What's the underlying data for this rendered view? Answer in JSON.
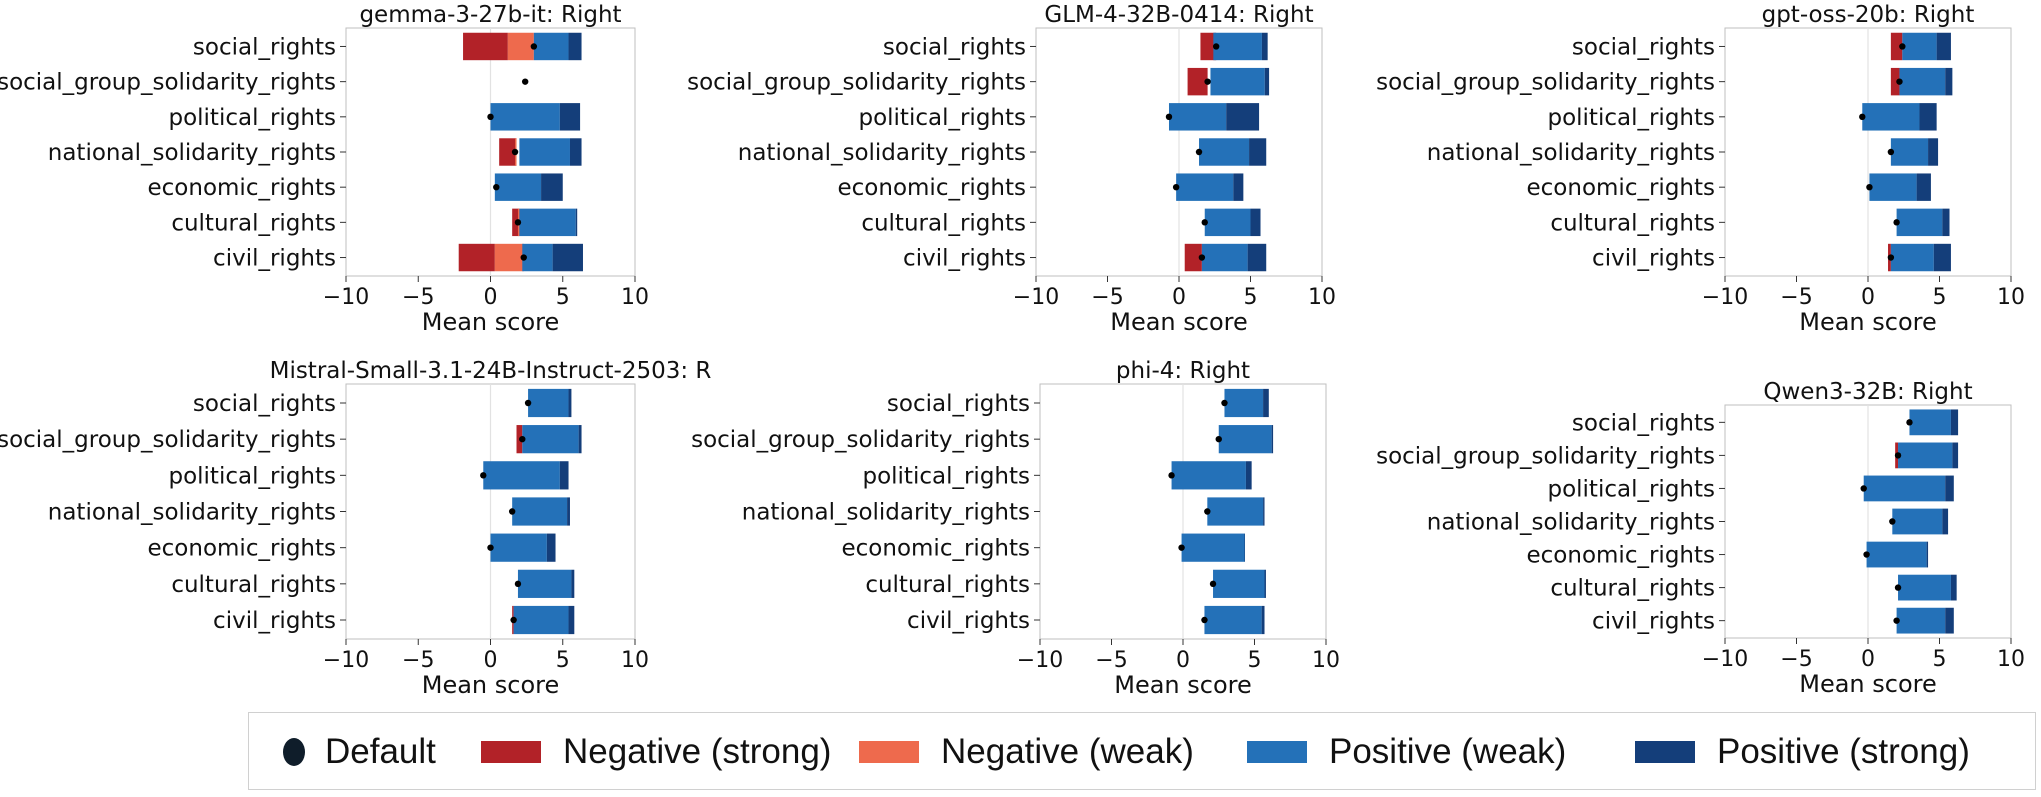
{
  "colors": {
    "neg_strong": "#b22228",
    "neg_weak": "#ee6a4d",
    "pos_weak": "#2471b8",
    "pos_strong": "#143e7a",
    "default_dot": "#000000"
  },
  "legend": {
    "items": [
      {
        "key": "default",
        "label": "Default",
        "color": "#0f1d2a"
      },
      {
        "key": "neg_strong",
        "label": "Negative (strong)",
        "color": "#b22228"
      },
      {
        "key": "neg_weak",
        "label": "Negative (weak)",
        "color": "#ee6a4d"
      },
      {
        "key": "pos_weak",
        "label": "Positive (weak)",
        "color": "#2471b8"
      },
      {
        "key": "pos_strong",
        "label": "Positive (strong)",
        "color": "#143e7a"
      }
    ]
  },
  "chart_data": [
    {
      "type": "bar",
      "title": "gemma-3-27b-it: Right",
      "xlabel": "Mean score",
      "xlim": [
        -10,
        10
      ],
      "xticks": [
        "−10",
        "−5",
        "0",
        "5",
        "10"
      ],
      "xtick_values": [
        -10,
        -5,
        0,
        5,
        10
      ],
      "categories": [
        "social_rights",
        "social_group_solidarity_rights",
        "political_rights",
        "national_solidarity_rights",
        "economic_rights",
        "cultural_rights",
        "civil_rights"
      ],
      "default": [
        3.0,
        2.4,
        0.0,
        1.7,
        0.4,
        1.9,
        2.3
      ],
      "neg_strong": [
        -1.9,
        null,
        null,
        0.6,
        null,
        1.5,
        -2.2
      ],
      "neg_weak": [
        1.2,
        null,
        null,
        1.8,
        null,
        2.0,
        0.3
      ],
      "pos_weak": [
        3.0,
        null,
        0.0,
        2.0,
        0.3,
        2.0,
        2.2
      ],
      "pos_strong": [
        5.4,
        null,
        4.8,
        5.5,
        3.5,
        5.9,
        4.3
      ],
      "pos_end": [
        6.3,
        null,
        6.2,
        6.3,
        5.0,
        6.0,
        6.4
      ]
    },
    {
      "type": "bar",
      "title": "GLM-4-32B-0414: Right",
      "xlabel": "Mean score",
      "xlim": [
        -10,
        10
      ],
      "xticks": [
        "−10",
        "−5",
        "0",
        "5",
        "10"
      ],
      "xtick_values": [
        -10,
        -5,
        0,
        5,
        10
      ],
      "categories": [
        "social_rights",
        "social_group_solidarity_rights",
        "political_rights",
        "national_solidarity_rights",
        "economic_rights",
        "cultural_rights",
        "civil_rights"
      ],
      "default": [
        2.6,
        2.0,
        -0.7,
        1.4,
        -0.2,
        1.8,
        1.6
      ],
      "neg_strong": [
        1.5,
        0.6,
        null,
        null,
        null,
        null,
        0.4
      ],
      "neg_weak": null,
      "pos_weak": [
        2.4,
        2.2,
        -0.7,
        1.4,
        -0.2,
        1.8,
        1.6
      ],
      "pos_strong": [
        5.8,
        6.0,
        3.3,
        4.9,
        3.8,
        5.0,
        4.8
      ],
      "pos_end": [
        6.2,
        6.3,
        5.6,
        6.1,
        4.5,
        5.7,
        6.1
      ]
    },
    {
      "type": "bar",
      "title": "gpt-oss-20b: Right",
      "xlabel": "Mean score",
      "xlim": [
        -10,
        10
      ],
      "xticks": [
        "−10",
        "−5",
        "0",
        "5",
        "10"
      ],
      "xtick_values": [
        -10,
        -5,
        0,
        5,
        10
      ],
      "categories": [
        "social_rights",
        "social_group_solidarity_rights",
        "political_rights",
        "national_solidarity_rights",
        "economic_rights",
        "cultural_rights",
        "civil_rights"
      ],
      "default": [
        2.4,
        2.2,
        -0.4,
        1.6,
        0.1,
        2.0,
        1.6
      ],
      "neg_strong": [
        1.6,
        1.6,
        null,
        null,
        null,
        null,
        1.4
      ],
      "neg_weak": null,
      "pos_weak": [
        2.4,
        2.2,
        -0.4,
        1.6,
        0.1,
        2.0,
        1.6
      ],
      "pos_strong": [
        4.8,
        5.4,
        3.6,
        4.2,
        3.4,
        5.2,
        4.6
      ],
      "pos_end": [
        5.8,
        5.9,
        4.8,
        4.9,
        4.4,
        5.7,
        5.8
      ]
    },
    {
      "type": "bar",
      "title": "Mistral-Small-3.1-24B-Instruct-2503: R",
      "xlabel": "Mean score",
      "xlim": [
        -10,
        10
      ],
      "xticks": [
        "−10",
        "−5",
        "0",
        "5",
        "10"
      ],
      "xtick_values": [
        -10,
        -5,
        0,
        5,
        10
      ],
      "categories": [
        "social_rights",
        "social_group_solidarity_rights",
        "political_rights",
        "national_solidarity_rights",
        "economic_rights",
        "cultural_rights",
        "civil_rights"
      ],
      "default": [
        2.6,
        2.2,
        -0.5,
        1.5,
        0.0,
        1.9,
        1.6
      ],
      "neg_strong": [
        null,
        1.8,
        null,
        null,
        null,
        null,
        1.5
      ],
      "neg_weak": null,
      "pos_weak": [
        2.6,
        2.2,
        -0.5,
        1.5,
        0.0,
        1.9,
        1.6
      ],
      "pos_strong": [
        5.4,
        6.1,
        4.8,
        5.3,
        3.9,
        5.6,
        5.4
      ],
      "pos_end": [
        5.6,
        6.3,
        5.4,
        5.5,
        4.5,
        5.8,
        5.8
      ]
    },
    {
      "type": "bar",
      "title": "phi-4: Right",
      "xlabel": "Mean score",
      "xlim": [
        -10,
        10
      ],
      "xticks": [
        "−10",
        "−5",
        "0",
        "5",
        "10"
      ],
      "xtick_values": [
        -10,
        -5,
        0,
        5,
        10
      ],
      "categories": [
        "social_rights",
        "social_group_solidarity_rights",
        "political_rights",
        "national_solidarity_rights",
        "economic_rights",
        "cultural_rights",
        "civil_rights"
      ],
      "default": [
        2.9,
        2.5,
        -0.8,
        1.7,
        -0.1,
        2.1,
        1.5
      ],
      "neg_strong": null,
      "neg_weak": null,
      "pos_weak": [
        2.9,
        2.5,
        -0.8,
        1.7,
        -0.1,
        2.1,
        1.5
      ],
      "pos_strong": [
        5.6,
        6.2,
        4.4,
        5.6,
        4.3,
        5.7,
        5.5
      ],
      "pos_end": [
        6.0,
        6.3,
        4.8,
        5.7,
        4.3,
        5.8,
        5.7
      ]
    },
    {
      "type": "bar",
      "title": "Qwen3-32B: Right",
      "xlabel": "Mean score",
      "xlim": [
        -10,
        10
      ],
      "xticks": [
        "−10",
        "−5",
        "0",
        "5",
        "10"
      ],
      "xtick_values": [
        -10,
        -5,
        0,
        5,
        10
      ],
      "categories": [
        "social_rights",
        "social_group_solidarity_rights",
        "political_rights",
        "national_solidarity_rights",
        "economic_rights",
        "cultural_rights",
        "civil_rights"
      ],
      "default": [
        2.9,
        2.1,
        -0.3,
        1.7,
        -0.1,
        2.1,
        2.0
      ],
      "neg_strong": [
        null,
        1.9,
        null,
        null,
        null,
        null,
        null
      ],
      "neg_weak": null,
      "pos_weak": [
        2.9,
        2.1,
        -0.3,
        1.7,
        -0.1,
        2.1,
        2.0
      ],
      "pos_strong": [
        5.8,
        5.9,
        5.4,
        5.2,
        4.1,
        5.8,
        5.4
      ],
      "pos_end": [
        6.3,
        6.3,
        6.0,
        5.6,
        4.2,
        6.2,
        6.0
      ]
    }
  ]
}
